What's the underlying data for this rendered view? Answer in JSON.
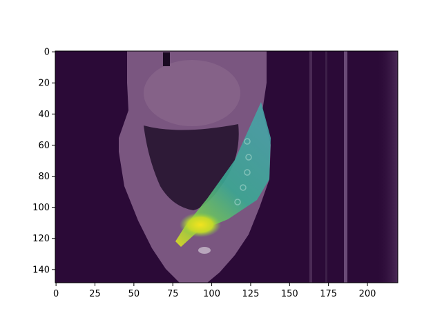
{
  "figure": {
    "image_shape": [
      149,
      220
    ],
    "colormap": "viridis",
    "overlay_alpha": 0.5
  },
  "axes": {
    "x_ticks": [
      "0",
      "25",
      "50",
      "75",
      "100",
      "125",
      "150",
      "175",
      "200"
    ],
    "x_tick_values": [
      0,
      25,
      50,
      75,
      100,
      125,
      150,
      175,
      200
    ],
    "y_ticks": [
      "0",
      "20",
      "40",
      "60",
      "80",
      "100",
      "120",
      "140"
    ],
    "y_tick_values": [
      0,
      20,
      40,
      60,
      80,
      100,
      120,
      140
    ],
    "xlim": [
      -0.5,
      219.5
    ],
    "ylim": [
      148.5,
      -0.5
    ]
  },
  "colors": {
    "background_dark": "#2b0a37",
    "body_tissue": "#7a5680",
    "lung_dark": "#2a1832",
    "beam_teal": "#3aa0a0",
    "beam_green": "#6cc060",
    "beam_yellow": "#d8e020"
  }
}
